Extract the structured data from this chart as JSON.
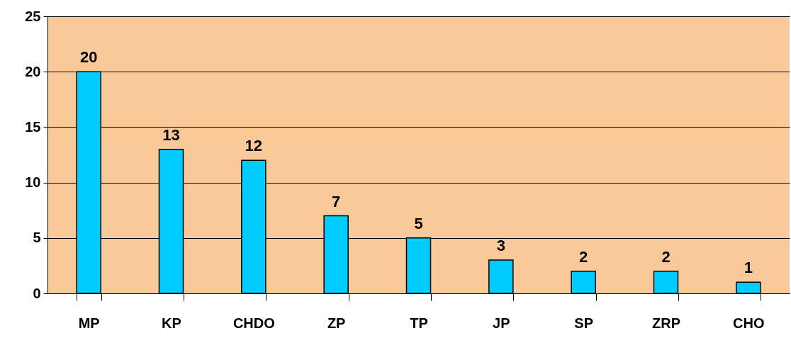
{
  "chart_data": {
    "type": "bar",
    "categories": [
      "MP",
      "KP",
      "CHDO",
      "ZP",
      "TP",
      "JP",
      "SP",
      "ZRP",
      "CHO"
    ],
    "values": [
      20,
      13,
      12,
      7,
      5,
      3,
      2,
      2,
      1
    ],
    "color": "#00ccff",
    "ylim": [
      0,
      25
    ],
    "yticks": [
      0,
      5,
      10,
      15,
      20,
      25
    ],
    "grid": "y",
    "data_labels": true
  }
}
